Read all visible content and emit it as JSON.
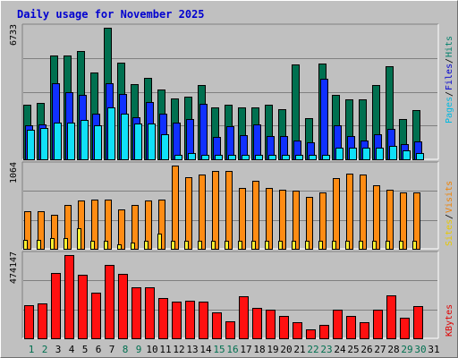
{
  "title": "Daily usage for November 2025",
  "colors": {
    "hits": "#007050",
    "files": "#1030ff",
    "pages": "#10e0f8",
    "visits": "#ff8c14",
    "sites": "#fff030",
    "kbytes": "#ff1010",
    "day_normal": "#000000",
    "day_weekend": "#007050",
    "legend_hits": "#00806a",
    "legend_files": "#0000d0",
    "legend_pages": "#00b8e0",
    "legend_visits": "#f08000",
    "legend_sites": "#e8c800",
    "legend_kbytes": "#e00000"
  },
  "chart_data": [
    {
      "type": "bar",
      "panel": "hits-files-pages",
      "ymax_label": "6733",
      "ylim": [
        0,
        6733
      ],
      "legend": [
        "Pages",
        "Files",
        "Hits"
      ],
      "categories": [
        1,
        2,
        3,
        4,
        5,
        6,
        7,
        8,
        9,
        10,
        11,
        12,
        13,
        14,
        15,
        16,
        17,
        18,
        19,
        20,
        21,
        22,
        23,
        24,
        25,
        26,
        27,
        28,
        29,
        30
      ],
      "series": [
        {
          "name": "Hits",
          "values": [
            2810,
            2900,
            5300,
            5300,
            5550,
            4450,
            6733,
            4950,
            3850,
            4150,
            3550,
            3100,
            3200,
            3800,
            2650,
            2800,
            2650,
            2650,
            2800,
            2550,
            4850,
            2100,
            4920,
            3300,
            3050,
            3050,
            3800,
            4750,
            2050,
            2500
          ]
        },
        {
          "name": "Files",
          "values": [
            1720,
            1800,
            3900,
            3420,
            3300,
            2350,
            3900,
            3350,
            2150,
            2920,
            2350,
            1900,
            2050,
            2820,
            1150,
            1700,
            1250,
            1770,
            1200,
            1180,
            950,
            850,
            4100,
            1750,
            1200,
            950,
            1300,
            1550,
            780,
            900
          ]
        },
        {
          "name": "Pages",
          "values": [
            1500,
            1600,
            1900,
            1900,
            2000,
            1750,
            2650,
            2320,
            1820,
            1850,
            1300,
            250,
            300,
            250,
            250,
            250,
            250,
            250,
            250,
            250,
            250,
            250,
            250,
            600,
            580,
            580,
            580,
            700,
            450,
            300
          ]
        }
      ]
    },
    {
      "type": "bar",
      "panel": "visits-sites",
      "ymax_label": "1064",
      "ylim": [
        0,
        1064
      ],
      "legend": [
        "Sites",
        "Visits"
      ],
      "categories": [
        1,
        2,
        3,
        4,
        5,
        6,
        7,
        8,
        9,
        10,
        11,
        12,
        13,
        14,
        15,
        16,
        17,
        18,
        19,
        20,
        21,
        22,
        23,
        24,
        25,
        26,
        27,
        28,
        29,
        30
      ],
      "series": [
        {
          "name": "Visits",
          "values": [
            480,
            480,
            440,
            560,
            620,
            630,
            630,
            500,
            560,
            620,
            630,
            1064,
            920,
            950,
            1000,
            990,
            780,
            870,
            780,
            750,
            740,
            660,
            720,
            900,
            960,
            950,
            810,
            750,
            720,
            720
          ]
        },
        {
          "name": "Sites",
          "values": [
            120,
            120,
            140,
            140,
            260,
            100,
            100,
            60,
            80,
            100,
            200,
            100,
            100,
            100,
            100,
            100,
            100,
            100,
            100,
            100,
            100,
            100,
            100,
            100,
            100,
            100,
            100,
            100,
            100,
            100
          ]
        }
      ]
    },
    {
      "type": "bar",
      "panel": "kbytes",
      "ymax_label": "474147",
      "ylim": [
        0,
        474147
      ],
      "legend": [
        "KBytes"
      ],
      "categories": [
        1,
        2,
        3,
        4,
        5,
        6,
        7,
        8,
        9,
        10,
        11,
        12,
        13,
        14,
        15,
        16,
        17,
        18,
        19,
        20,
        21,
        22,
        23,
        24,
        25,
        26,
        27,
        28,
        29,
        30
      ],
      "series": [
        {
          "name": "KBytes",
          "values": [
            190000,
            200000,
            370000,
            474147,
            360000,
            260000,
            420000,
            365000,
            290000,
            290000,
            230000,
            210000,
            215000,
            210000,
            150000,
            95000,
            240000,
            175000,
            165000,
            125000,
            90000,
            50000,
            75000,
            165000,
            125000,
            90000,
            165000,
            245000,
            115000,
            185000
          ]
        }
      ]
    }
  ],
  "x_labels": [
    "1",
    "2",
    "3",
    "4",
    "5",
    "6",
    "7",
    "8",
    "9",
    "10",
    "11",
    "12",
    "13",
    "14",
    "15",
    "16",
    "17",
    "18",
    "19",
    "20",
    "21",
    "22",
    "23",
    "24",
    "25",
    "26",
    "27",
    "28",
    "29",
    "30",
    "31"
  ],
  "weekend_days": [
    1,
    2,
    8,
    9,
    15,
    16,
    22,
    23,
    29,
    30
  ]
}
